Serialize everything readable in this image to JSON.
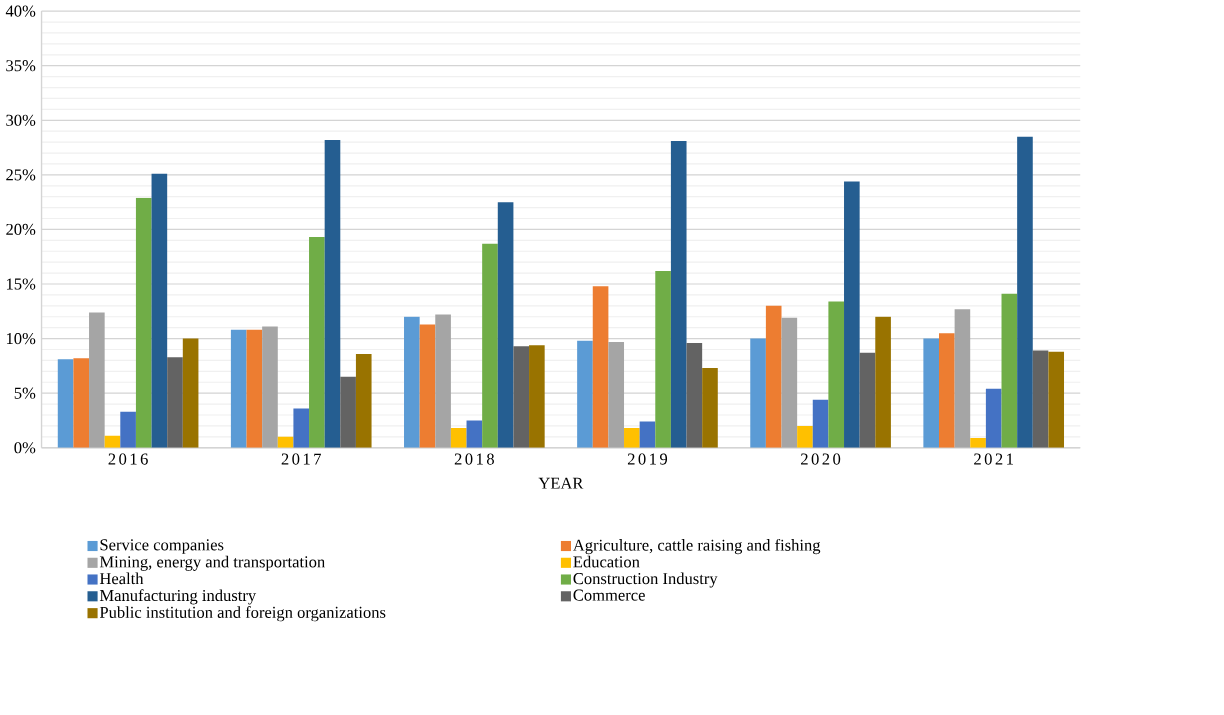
{
  "chart_data": {
    "type": "bar",
    "xlabel": "YEAR",
    "categories": [
      "2016",
      "2017",
      "2018",
      "2019",
      "2020",
      "2021"
    ],
    "series": [
      {
        "name": "Service companies",
        "color": "#5b9bd5",
        "values": [
          8.1,
          10.8,
          12.0,
          9.8,
          10.0,
          10.0
        ]
      },
      {
        "name": "Agriculture, cattle raising and fishing",
        "color": "#ed7d31",
        "values": [
          8.2,
          10.8,
          11.3,
          14.8,
          13.0,
          10.5
        ]
      },
      {
        "name": "Mining, energy and transportation",
        "color": "#a5a5a5",
        "values": [
          12.4,
          11.1,
          12.2,
          9.7,
          11.9,
          12.7
        ]
      },
      {
        "name": "Education",
        "color": "#ffc000",
        "values": [
          1.1,
          1.0,
          1.8,
          1.8,
          2.0,
          0.9
        ]
      },
      {
        "name": "Health",
        "color": "#4472c4",
        "values": [
          3.3,
          3.6,
          2.5,
          2.4,
          4.4,
          5.4
        ]
      },
      {
        "name": "Construction Industry",
        "color": "#70ad47",
        "values": [
          22.9,
          19.3,
          18.7,
          16.2,
          13.4,
          14.1
        ]
      },
      {
        "name": "Manufacturing industry",
        "color": "#255e91",
        "values": [
          25.1,
          28.2,
          22.5,
          28.1,
          24.4,
          28.5
        ]
      },
      {
        "name": "Commerce",
        "color": "#636363",
        "values": [
          8.3,
          6.5,
          9.3,
          9.6,
          8.7,
          8.9
        ]
      },
      {
        "name": "Public institution and foreign organizations",
        "color": "#997300",
        "values": [
          10.0,
          8.6,
          9.4,
          7.3,
          12.0,
          8.8
        ]
      }
    ],
    "ylim": [
      0,
      40
    ],
    "yticks": [
      {
        "value": 0,
        "label": "0%"
      },
      {
        "value": 1,
        "label": null
      },
      {
        "value": 2,
        "label": null
      },
      {
        "value": 3,
        "label": null
      },
      {
        "value": 4,
        "label": null
      },
      {
        "value": 5,
        "label": "5%"
      },
      {
        "value": 6,
        "label": null
      },
      {
        "value": 7,
        "label": null
      },
      {
        "value": 8,
        "label": null
      },
      {
        "value": 9,
        "label": null
      },
      {
        "value": 10,
        "label": "10%"
      },
      {
        "value": 11,
        "label": null
      },
      {
        "value": 12,
        "label": null
      },
      {
        "value": 13,
        "label": null
      },
      {
        "value": 14,
        "label": null
      },
      {
        "value": 15,
        "label": "15%"
      },
      {
        "value": 16,
        "label": null
      },
      {
        "value": 17,
        "label": null
      },
      {
        "value": 18,
        "label": null
      },
      {
        "value": 19,
        "label": null
      },
      {
        "value": 20,
        "label": "20%"
      },
      {
        "value": 21,
        "label": null
      },
      {
        "value": 22,
        "label": null
      },
      {
        "value": 23,
        "label": null
      },
      {
        "value": 24,
        "label": null
      },
      {
        "value": 25,
        "label": "25%"
      },
      {
        "value": 26,
        "label": null
      },
      {
        "value": 27,
        "label": null
      },
      {
        "value": 28,
        "label": null
      },
      {
        "value": 29,
        "label": null
      },
      {
        "value": 30,
        "label": "30%"
      },
      {
        "value": 31,
        "label": null
      },
      {
        "value": 32,
        "label": null
      },
      {
        "value": 33,
        "label": null
      },
      {
        "value": 34,
        "label": null
      },
      {
        "value": 35,
        "label": "35%"
      },
      {
        "value": 36,
        "label": null
      },
      {
        "value": 37,
        "label": null
      },
      {
        "value": 38,
        "label": null
      },
      {
        "value": 39,
        "label": null
      },
      {
        "value": 40,
        "label": "40%"
      }
    ],
    "grid": "y",
    "legend": "bottom"
  }
}
